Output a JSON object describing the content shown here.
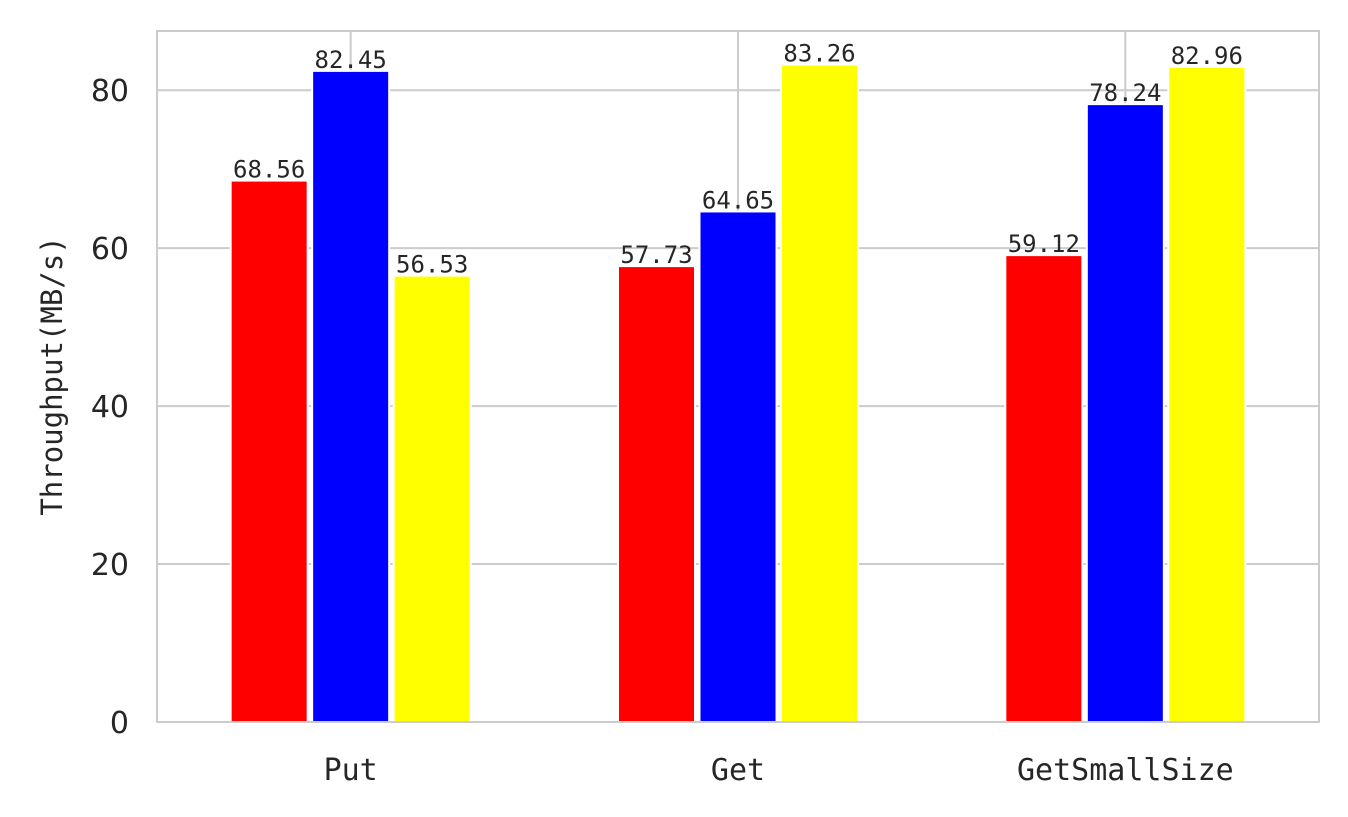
{
  "chart_data": {
    "type": "bar",
    "title": "",
    "xlabel": "",
    "ylabel": "Throughput(MB/s)",
    "categories": [
      "Put",
      "Get",
      "GetSmallSize"
    ],
    "series": [
      {
        "color": "#ff0000",
        "values": [
          68.56,
          57.73,
          59.12
        ]
      },
      {
        "color": "#0000ff",
        "values": [
          82.45,
          64.65,
          78.24
        ]
      },
      {
        "color": "#ffff00",
        "values": [
          56.53,
          83.26,
          82.96
        ]
      }
    ],
    "ylim": [
      0,
      87.5
    ],
    "yticks": [
      0,
      20,
      40,
      60,
      80
    ],
    "grid": true,
    "legend": "none"
  }
}
